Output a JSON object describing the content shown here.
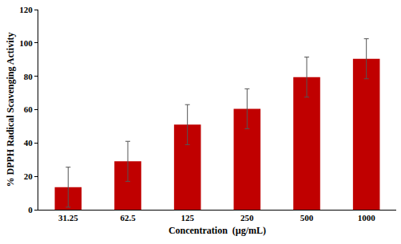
{
  "chart_data": {
    "type": "bar",
    "x_label": "Concentration  (µg/mL)",
    "y_label": "% DPPH Radical Scavenging Activity",
    "categories": [
      "31.25",
      "62.5",
      "125",
      "250",
      "500",
      "1000"
    ],
    "values": [
      13.5,
      29,
      51,
      60.5,
      79.5,
      90.5
    ],
    "errors": [
      12,
      12,
      12,
      12,
      12,
      12
    ],
    "color": "#c00000",
    "ylim": [
      0,
      120
    ],
    "yticks": [
      0,
      20,
      40,
      60,
      80,
      100,
      120
    ],
    "grid": false
  }
}
